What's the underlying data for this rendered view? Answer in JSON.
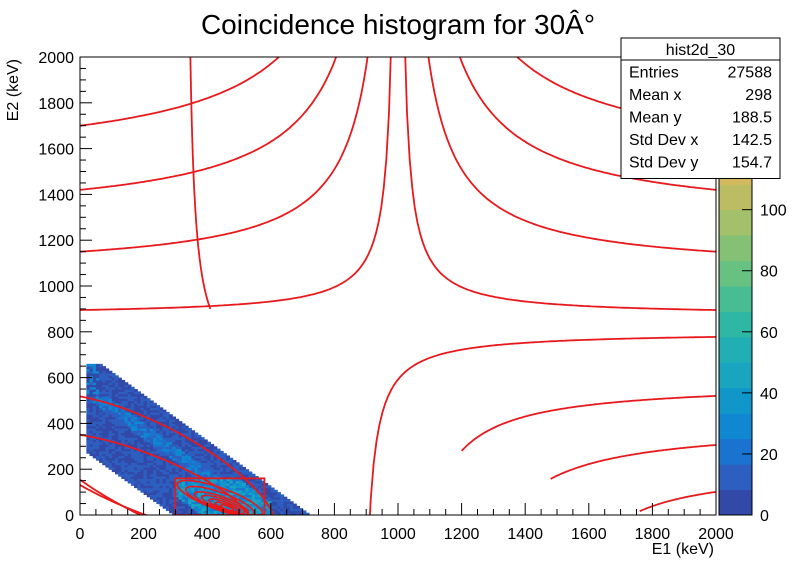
{
  "chart_data": {
    "type": "heatmap",
    "title": "Coincidence histogram for 30Â°",
    "xlabel": "E1 (keV)",
    "ylabel": "E2 (keV)",
    "xlim": [
      0,
      2000
    ],
    "ylim": [
      0,
      2000
    ],
    "zlim": [
      0,
      150
    ],
    "x_ticks": [
      0,
      200,
      400,
      600,
      800,
      1000,
      1200,
      1400,
      1600,
      1800,
      2000
    ],
    "y_ticks": [
      0,
      200,
      400,
      600,
      800,
      1000,
      1200,
      1400,
      1600,
      1800,
      2000
    ],
    "z_ticks": [
      0,
      20,
      40,
      60,
      80,
      100
    ],
    "palette": [
      "#3349a8",
      "#2d5fc0",
      "#1a74cf",
      "#0f88d1",
      "#1196c9",
      "#19a5c0",
      "#21aeb4",
      "#2db7a4",
      "#48bd93",
      "#67c282",
      "#85c174",
      "#a3c06a",
      "#bcbd63",
      "#d2b95e"
    ],
    "stats": {
      "name": "hist2d_30",
      "rows": [
        {
          "label": "Entries",
          "value": "27588"
        },
        {
          "label": "Mean x",
          "value": "298"
        },
        {
          "label": "Mean y",
          "value": "188.5"
        },
        {
          "label": "Std Dev x",
          "value": "142.5"
        },
        {
          "label": "Std Dev y",
          "value": "154.7"
        }
      ]
    },
    "band": {
      "description_points": [
        [
          30,
          600
        ],
        [
          100,
          560
        ],
        [
          200,
          500
        ],
        [
          300,
          440
        ],
        [
          400,
          330
        ],
        [
          500,
          220
        ],
        [
          600,
          110
        ],
        [
          700,
          20
        ]
      ]
    },
    "box": {
      "x": [
        300,
        580
      ],
      "y": [
        0,
        160
      ]
    },
    "curve_color": "#e8191c"
  }
}
